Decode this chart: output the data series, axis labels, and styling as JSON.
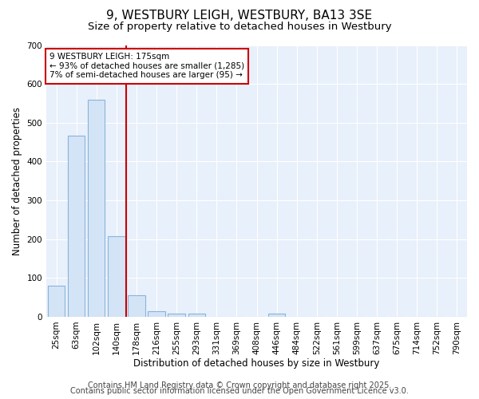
{
  "title": "9, WESTBURY LEIGH, WESTBURY, BA13 3SE",
  "subtitle": "Size of property relative to detached houses in Westbury",
  "xlabel": "Distribution of detached houses by size in Westbury",
  "ylabel": "Number of detached properties",
  "bin_labels": [
    "25sqm",
    "63sqm",
    "102sqm",
    "140sqm",
    "178sqm",
    "216sqm",
    "255sqm",
    "293sqm",
    "331sqm",
    "369sqm",
    "408sqm",
    "446sqm",
    "484sqm",
    "522sqm",
    "561sqm",
    "599sqm",
    "637sqm",
    "675sqm",
    "714sqm",
    "752sqm",
    "790sqm"
  ],
  "bar_heights": [
    80,
    467,
    560,
    207,
    55,
    15,
    8,
    8,
    0,
    0,
    0,
    8,
    0,
    0,
    0,
    0,
    0,
    0,
    0,
    0,
    0
  ],
  "bar_color": "#d4e4f7",
  "bar_edgecolor": "#8ab4d8",
  "vline_x": 3.5,
  "vline_color": "#cc0000",
  "annotation_line1": "9 WESTBURY LEIGH: 175sqm",
  "annotation_line2": "← 93% of detached houses are smaller (1,285)",
  "annotation_line3": "7% of semi-detached houses are larger (95) →",
  "annotation_box_color": "#cc0000",
  "ylim": [
    0,
    700
  ],
  "yticks": [
    0,
    100,
    200,
    300,
    400,
    500,
    600,
    700
  ],
  "footer1": "Contains HM Land Registry data © Crown copyright and database right 2025.",
  "footer2": "Contains public sector information licensed under the Open Government Licence v3.0.",
  "bg_color": "#ffffff",
  "plot_bg_color": "#e8f0fb",
  "grid_color": "#ffffff",
  "title_fontsize": 11,
  "subtitle_fontsize": 9.5,
  "axis_fontsize": 8.5,
  "tick_fontsize": 7.5,
  "footer_fontsize": 7
}
